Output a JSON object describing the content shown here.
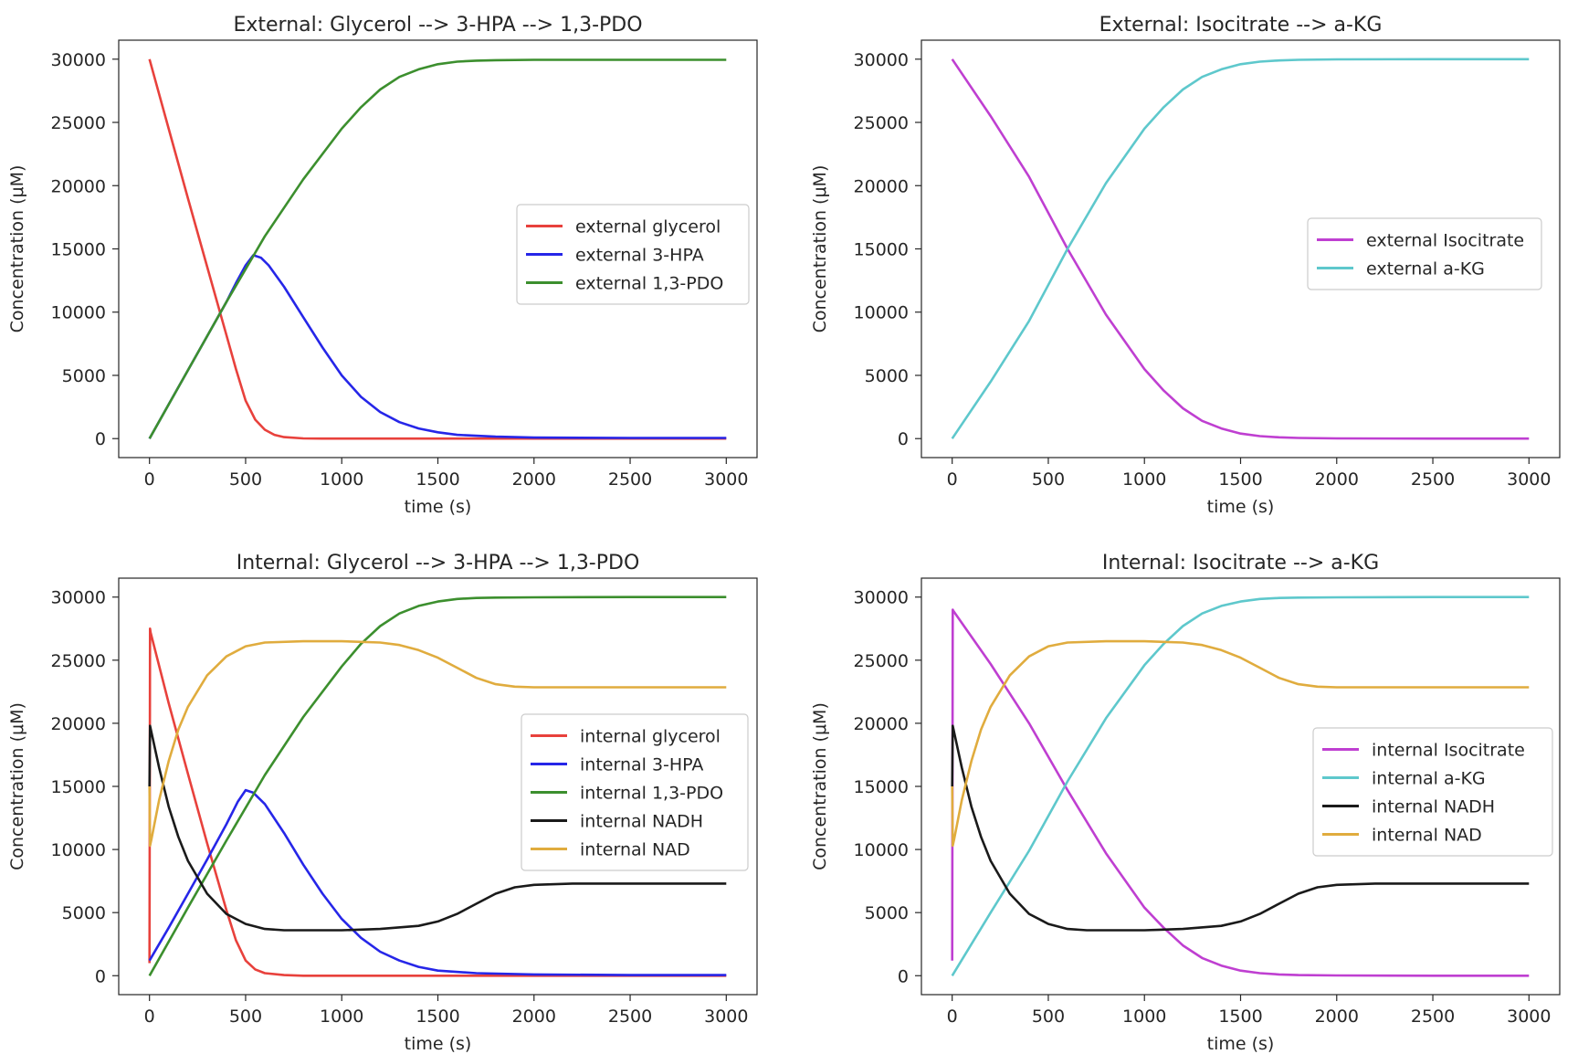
{
  "chart_data": [
    {
      "type": "line",
      "title": "External: Glycerol --> 3-HPA --> 1,3-PDO",
      "xlabel": "time (s)",
      "ylabel": "Concentration (μM)",
      "xlim": [
        -160,
        3160
      ],
      "ylim": [
        -1500,
        31500
      ],
      "xticks": [
        0,
        500,
        1000,
        1500,
        2000,
        2500,
        3000
      ],
      "yticks": [
        0,
        5000,
        10000,
        15000,
        20000,
        25000,
        30000
      ],
      "grid": false,
      "legend_position": "center right",
      "series": [
        {
          "name": "external glycerol",
          "color": "#e8413c",
          "x": [
            0,
            100,
            200,
            300,
            400,
            450,
            500,
            550,
            600,
            650,
            700,
            800,
            900,
            1000,
            1500,
            2000,
            3000
          ],
          "y": [
            30000,
            24500,
            19000,
            13600,
            8200,
            5500,
            3000,
            1500,
            700,
            300,
            120,
            20,
            0,
            0,
            0,
            0,
            0
          ]
        },
        {
          "name": "external 3-HPA",
          "color": "#2626e8",
          "x": [
            0,
            100,
            200,
            300,
            400,
            450,
            500,
            540,
            580,
            620,
            700,
            800,
            900,
            1000,
            1100,
            1200,
            1300,
            1400,
            1500,
            1600,
            1800,
            2000,
            2500,
            3000
          ],
          "y": [
            0,
            2700,
            5400,
            8100,
            10800,
            12300,
            13700,
            14500,
            14300,
            13700,
            12000,
            9600,
            7200,
            5000,
            3300,
            2100,
            1300,
            800,
            500,
            300,
            150,
            80,
            50,
            50
          ]
        },
        {
          "name": "external 1,3-PDO",
          "color": "#3c8f2e",
          "x": [
            0,
            200,
            400,
            600,
            800,
            1000,
            1100,
            1200,
            1300,
            1400,
            1500,
            1600,
            1700,
            1800,
            2000,
            2500,
            3000
          ],
          "y": [
            0,
            5400,
            10800,
            16000,
            20500,
            24500,
            26200,
            27600,
            28600,
            29200,
            29600,
            29800,
            29880,
            29920,
            29950,
            29950,
            29950
          ]
        }
      ]
    },
    {
      "type": "line",
      "title": "External: Isocitrate --> a-KG",
      "xlabel": "time (s)",
      "ylabel": "Concentration (μM)",
      "xlim": [
        -160,
        3160
      ],
      "ylim": [
        -1500,
        31500
      ],
      "xticks": [
        0,
        500,
        1000,
        1500,
        2000,
        2500,
        3000
      ],
      "yticks": [
        0,
        5000,
        10000,
        15000,
        20000,
        25000,
        30000
      ],
      "grid": false,
      "legend_position": "center right",
      "series": [
        {
          "name": "external Isocitrate",
          "color": "#bf3fd1",
          "x": [
            0,
            200,
            400,
            600,
            800,
            1000,
            1100,
            1200,
            1300,
            1400,
            1500,
            1600,
            1700,
            1800,
            2000,
            2500,
            3000
          ],
          "y": [
            30000,
            25500,
            20700,
            15000,
            9800,
            5500,
            3800,
            2400,
            1400,
            800,
            400,
            200,
            100,
            50,
            20,
            0,
            0
          ]
        },
        {
          "name": "external a-KG",
          "color": "#5ec8cc",
          "x": [
            0,
            200,
            400,
            600,
            800,
            1000,
            1100,
            1200,
            1300,
            1400,
            1500,
            1600,
            1700,
            1800,
            2000,
            2500,
            3000
          ],
          "y": [
            0,
            4500,
            9300,
            15000,
            20200,
            24500,
            26200,
            27600,
            28600,
            29200,
            29600,
            29800,
            29900,
            29950,
            29980,
            30000,
            30000
          ]
        }
      ]
    },
    {
      "type": "line",
      "title": "Internal: Glycerol --> 3-HPA --> 1,3-PDO",
      "xlabel": "time (s)",
      "ylabel": "Concentration (μM)",
      "xlim": [
        -160,
        3160
      ],
      "ylim": [
        -1500,
        31500
      ],
      "xticks": [
        0,
        500,
        1000,
        1500,
        2000,
        2500,
        3000
      ],
      "yticks": [
        0,
        5000,
        10000,
        15000,
        20000,
        25000,
        30000
      ],
      "grid": false,
      "legend_position": "center right",
      "series": [
        {
          "name": "internal glycerol",
          "color": "#e8413c",
          "x": [
            0,
            3,
            6,
            100,
            200,
            300,
            400,
            450,
            500,
            550,
            600,
            700,
            800,
            1000,
            2000,
            3000
          ],
          "y": [
            1000,
            27500,
            27200,
            21600,
            16000,
            10500,
            5200,
            2800,
            1200,
            500,
            200,
            50,
            0,
            0,
            0,
            0
          ]
        },
        {
          "name": "internal 3-HPA",
          "color": "#2626e8",
          "x": [
            0,
            100,
            200,
            300,
            400,
            460,
            500,
            540,
            600,
            700,
            800,
            900,
            1000,
            1100,
            1200,
            1300,
            1400,
            1500,
            1700,
            2000,
            2500,
            3000
          ],
          "y": [
            1200,
            3800,
            6500,
            9200,
            12000,
            13800,
            14700,
            14500,
            13600,
            11300,
            8800,
            6500,
            4500,
            3000,
            1900,
            1200,
            700,
            400,
            200,
            100,
            50,
            50
          ]
        },
        {
          "name": "internal 1,3-PDO",
          "color": "#3c8f2e",
          "x": [
            0,
            200,
            400,
            600,
            800,
            1000,
            1100,
            1200,
            1300,
            1400,
            1500,
            1600,
            1700,
            1800,
            2000,
            2500,
            3000
          ],
          "y": [
            0,
            5400,
            10700,
            15900,
            20500,
            24500,
            26300,
            27700,
            28700,
            29300,
            29650,
            29850,
            29930,
            29960,
            29980,
            30000,
            30000
          ]
        },
        {
          "name": "internal NADH",
          "color": "#1a1a1a",
          "x": [
            0,
            3,
            10,
            50,
            100,
            150,
            200,
            300,
            400,
            500,
            600,
            700,
            800,
            1000,
            1200,
            1400,
            1500,
            1600,
            1700,
            1800,
            1900,
            2000,
            2200,
            2500,
            3000
          ],
          "y": [
            15000,
            19800,
            19300,
            16500,
            13400,
            11000,
            9100,
            6500,
            4900,
            4100,
            3700,
            3600,
            3600,
            3600,
            3700,
            3950,
            4300,
            4900,
            5700,
            6500,
            7000,
            7200,
            7300,
            7300,
            7300
          ]
        },
        {
          "name": "internal NAD",
          "color": "#e0ac3e",
          "x": [
            0,
            3,
            10,
            50,
            100,
            150,
            200,
            300,
            400,
            500,
            600,
            800,
            1000,
            1200,
            1300,
            1400,
            1500,
            1600,
            1700,
            1800,
            1900,
            2000,
            2200,
            2500,
            3000
          ],
          "y": [
            15000,
            10300,
            10800,
            13900,
            17000,
            19500,
            21300,
            23800,
            25300,
            26100,
            26400,
            26500,
            26500,
            26400,
            26200,
            25800,
            25200,
            24400,
            23600,
            23100,
            22900,
            22850,
            22850,
            22850,
            22850
          ]
        }
      ]
    },
    {
      "type": "line",
      "title": "Internal: Isocitrate --> a-KG",
      "xlabel": "time (s)",
      "ylabel": "Concentration (μM)",
      "xlim": [
        -160,
        3160
      ],
      "ylim": [
        -1500,
        31500
      ],
      "xticks": [
        0,
        500,
        1000,
        1500,
        2000,
        2500,
        3000
      ],
      "yticks": [
        0,
        5000,
        10000,
        15000,
        20000,
        25000,
        30000
      ],
      "grid": false,
      "legend_position": "center right",
      "series": [
        {
          "name": "internal Isocitrate",
          "color": "#bf3fd1",
          "x": [
            0,
            3,
            6,
            200,
            400,
            600,
            800,
            1000,
            1100,
            1200,
            1300,
            1400,
            1500,
            1600,
            1700,
            1800,
            2000,
            2500,
            3000
          ],
          "y": [
            1200,
            29000,
            28900,
            24700,
            20000,
            14700,
            9700,
            5400,
            3800,
            2400,
            1400,
            800,
            400,
            200,
            100,
            50,
            20,
            0,
            0
          ]
        },
        {
          "name": "internal a-KG",
          "color": "#5ec8cc",
          "x": [
            0,
            200,
            400,
            600,
            800,
            1000,
            1100,
            1200,
            1300,
            1400,
            1500,
            1600,
            1700,
            1800,
            2000,
            2500,
            3000
          ],
          "y": [
            0,
            5000,
            9900,
            15400,
            20400,
            24600,
            26300,
            27700,
            28700,
            29300,
            29650,
            29850,
            29930,
            29960,
            29980,
            30000,
            30000
          ]
        },
        {
          "name": "internal NADH",
          "color": "#1a1a1a",
          "x": [
            0,
            3,
            10,
            50,
            100,
            150,
            200,
            300,
            400,
            500,
            600,
            700,
            800,
            1000,
            1200,
            1400,
            1500,
            1600,
            1700,
            1800,
            1900,
            2000,
            2200,
            2500,
            3000
          ],
          "y": [
            15000,
            19800,
            19300,
            16500,
            13400,
            11000,
            9100,
            6500,
            4900,
            4100,
            3700,
            3600,
            3600,
            3600,
            3700,
            3950,
            4300,
            4900,
            5700,
            6500,
            7000,
            7200,
            7300,
            7300,
            7300
          ]
        },
        {
          "name": "internal NAD",
          "color": "#e0ac3e",
          "x": [
            0,
            3,
            10,
            50,
            100,
            150,
            200,
            300,
            400,
            500,
            600,
            800,
            1000,
            1200,
            1300,
            1400,
            1500,
            1600,
            1700,
            1800,
            1900,
            2000,
            2200,
            2500,
            3000
          ],
          "y": [
            15000,
            10300,
            10800,
            13900,
            17000,
            19500,
            21300,
            23800,
            25300,
            26100,
            26400,
            26500,
            26500,
            26400,
            26200,
            25800,
            25200,
            24400,
            23600,
            23100,
            22900,
            22850,
            22850,
            22850,
            22850
          ]
        }
      ]
    }
  ]
}
